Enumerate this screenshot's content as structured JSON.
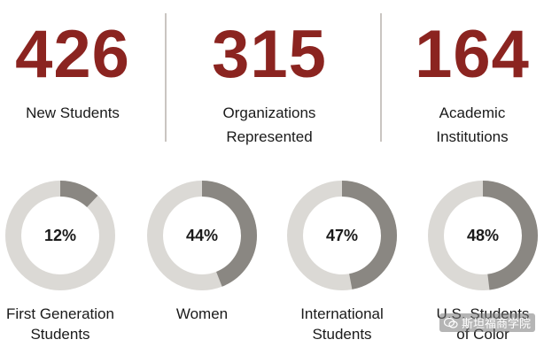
{
  "colors": {
    "accent": "#8b2420",
    "ring_track": "#dbd9d5",
    "ring_fill": "#8a8782",
    "divider": "#c9c5c1"
  },
  "stats": [
    {
      "number": "426",
      "label_lines": [
        "New Students"
      ]
    },
    {
      "number": "315",
      "label_lines": [
        "Organizations",
        "Represented"
      ]
    },
    {
      "number": "164",
      "label_lines": [
        "Academic",
        "Institutions"
      ]
    }
  ],
  "donuts": [
    {
      "percent": 12,
      "percent_text": "12%",
      "label_lines": [
        "First Generation",
        "Students"
      ]
    },
    {
      "percent": 44,
      "percent_text": "44%",
      "label_lines": [
        "Women"
      ]
    },
    {
      "percent": 47,
      "percent_text": "47%",
      "label_lines": [
        "International",
        "Students"
      ]
    },
    {
      "percent": 48,
      "percent_text": "48%",
      "label_lines": [
        "U.S. Students",
        "of Color"
      ]
    }
  ],
  "watermark": {
    "text": "斯坦福商学院",
    "icon": "wechat-icon"
  }
}
